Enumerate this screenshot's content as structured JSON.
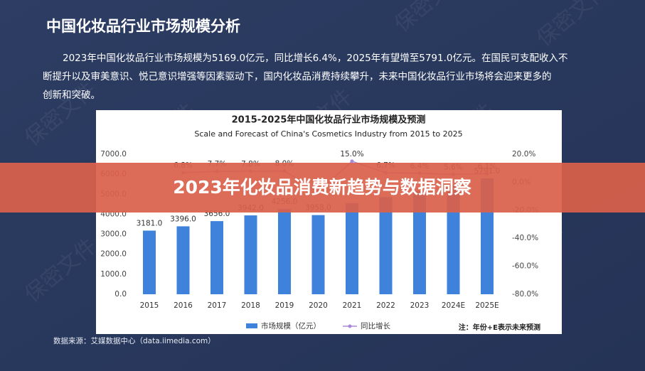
{
  "heading": "中国化妆品行业市场规模分析",
  "paragraph": [
    "2023年中国化妆品行业市场规模为5169.0亿元，同比增长6.4%，2025年有望增至5791.0亿元。在国民可支配收入不",
    "断提升以及审美意识、悦己意识增强等因素驱动下，国内化妆品消费持续攀升，未来中国化妆品行业市场将会迎来更多的",
    "创新和突破。"
  ],
  "banner": "2023年化妆品消费新趋势与数据洞察",
  "source": "数据来源：艾媒数据中心（data.iimedia.com）",
  "watermark": "保密文件",
  "chart_data": {
    "type": "bar-line",
    "title": "2015-2025年中国化妆品行业市场规模及预测",
    "subtitle": "Scale and Forecast of China's Cosmetics Industry from 2015 to 2025",
    "categories": [
      "2015",
      "2016",
      "2017",
      "2018",
      "2019",
      "2020",
      "2021",
      "2022",
      "2023",
      "2024E",
      "2025E"
    ],
    "series": [
      {
        "name": "市场规模（亿元）",
        "color": "#3f82dc",
        "values": [
          3181.0,
          3396.0,
          3656.0,
          3942.0,
          4256.0,
          3958.0,
          4552.0,
          4857.0,
          5169.0,
          5458.0,
          5791.0
        ],
        "value_labels": [
          "3181.0",
          "3396.0",
          "3656.0",
          "3942.0",
          "4256.0",
          "3958.0",
          null,
          null,
          null,
          null,
          "5791.0"
        ]
      },
      {
        "name": "同比增长",
        "color": "#a98ad8",
        "axis": "y2",
        "values": [
          null,
          6.8,
          7.7,
          7.8,
          8.0,
          -7.0,
          15.0,
          6.7,
          6.4,
          5.6,
          6.1
        ],
        "value_labels": [
          null,
          "6.8%",
          "7.7%",
          "7.8%",
          "8.0%",
          null,
          "15.0%",
          "6.7%",
          "6.4%",
          "5.6%",
          "6.1%"
        ]
      }
    ],
    "ylim": [
      0,
      7000
    ],
    "yticks": [
      {
        "value": 0,
        "label": "0.0"
      },
      {
        "value": 1000,
        "label": "1000.0"
      },
      {
        "value": 2000,
        "label": "2000.0"
      },
      {
        "value": 3000,
        "label": "3000.0"
      },
      {
        "value": 4000,
        "label": "4000.0"
      },
      {
        "value": 5000,
        "label": "5000.0"
      },
      {
        "value": 6000,
        "label": "6000.0"
      },
      {
        "value": 7000,
        "label": "7000.0"
      }
    ],
    "y2lim": [
      -80,
      20
    ],
    "y2ticks": [
      {
        "value": -80,
        "label": "-80.0%"
      },
      {
        "value": -60,
        "label": "-60.0%"
      },
      {
        "value": -40,
        "label": "-40.0%"
      },
      {
        "value": -20,
        "label": "-20.0%"
      },
      {
        "value": 0,
        "label": "0.0%"
      },
      {
        "value": 20,
        "label": "20.0%"
      }
    ],
    "note": "注：年份+E表示未来预测",
    "grid": false
  }
}
